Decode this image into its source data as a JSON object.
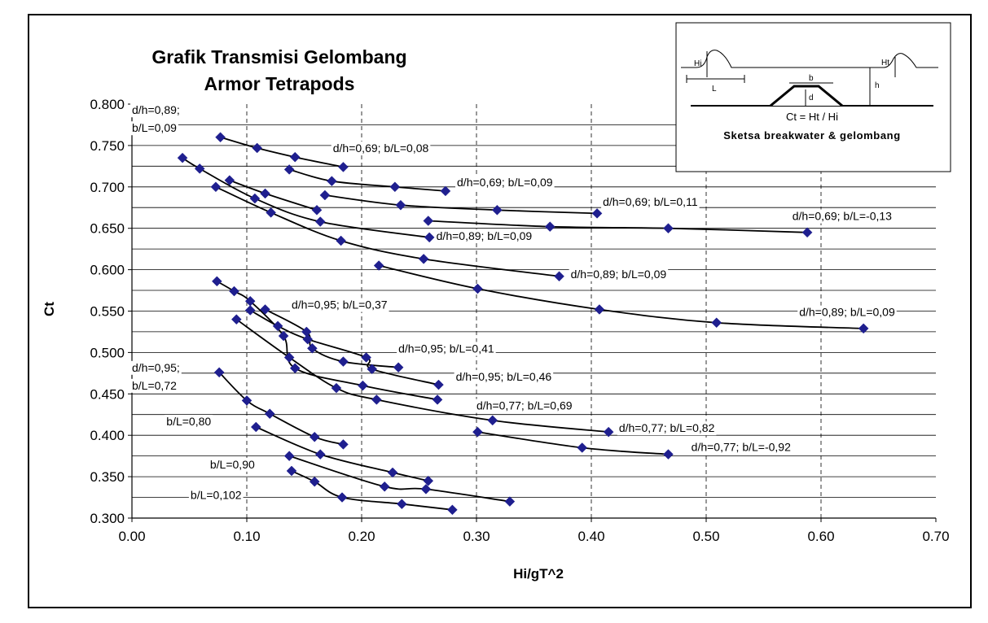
{
  "chart_data": {
    "type": "line",
    "title": "Grafik Transmisi Gelombang",
    "subtitle": "Armor Tetrapods",
    "xlabel": "Hi/gT^2",
    "ylabel": "Ct",
    "xlim": [
      0.0,
      0.7
    ],
    "ylim": [
      0.3,
      0.8
    ],
    "x_ticks": [
      "0.00",
      "0.10",
      "0.20",
      "0.30",
      "0.40",
      "0.50",
      "0.60",
      "0.70"
    ],
    "y_ticks": [
      "0.300",
      "0.350",
      "0.400",
      "0.450",
      "0.500",
      "0.550",
      "0.600",
      "0.650",
      "0.700",
      "0.750",
      "0.800"
    ],
    "grid": "dashed vertical gridlines",
    "marker_color": "#1f1f8f",
    "series": [
      {
        "values": [
          [
            0.077,
            0.76
          ],
          [
            0.109,
            0.747
          ],
          [
            0.142,
            0.736
          ],
          [
            0.184,
            0.724
          ]
        ]
      },
      {
        "values": [
          [
            0.137,
            0.721
          ],
          [
            0.174,
            0.707
          ],
          [
            0.229,
            0.7
          ],
          [
            0.273,
            0.695
          ]
        ]
      },
      {
        "values": [
          [
            0.168,
            0.69
          ],
          [
            0.234,
            0.678
          ],
          [
            0.318,
            0.672
          ],
          [
            0.405,
            0.668
          ]
        ]
      },
      {
        "values": [
          [
            0.258,
            0.659
          ],
          [
            0.364,
            0.652
          ],
          [
            0.467,
            0.65
          ],
          [
            0.588,
            0.645
          ]
        ]
      },
      {
        "values": [
          [
            0.085,
            0.708
          ],
          [
            0.116,
            0.692
          ],
          [
            0.161,
            0.672
          ]
        ]
      },
      {
        "values": [
          [
            0.044,
            0.735
          ],
          [
            0.059,
            0.722
          ],
          [
            0.107,
            0.686
          ],
          [
            0.164,
            0.658
          ],
          [
            0.259,
            0.639
          ]
        ]
      },
      {
        "values": [
          [
            0.073,
            0.7
          ],
          [
            0.121,
            0.669
          ],
          [
            0.182,
            0.635
          ],
          [
            0.254,
            0.613
          ],
          [
            0.372,
            0.592
          ]
        ]
      },
      {
        "values": [
          [
            0.215,
            0.605
          ],
          [
            0.301,
            0.577
          ],
          [
            0.407,
            0.552
          ],
          [
            0.509,
            0.536
          ],
          [
            0.637,
            0.529
          ]
        ]
      },
      {
        "values": [
          [
            0.074,
            0.586
          ],
          [
            0.089,
            0.574
          ],
          [
            0.103,
            0.562
          ],
          [
            0.132,
            0.52
          ],
          [
            0.142,
            0.481
          ],
          [
            0.201,
            0.46
          ],
          [
            0.266,
            0.443
          ]
        ]
      },
      {
        "values": [
          [
            0.116,
            0.552
          ],
          [
            0.152,
            0.525
          ],
          [
            0.157,
            0.505
          ],
          [
            0.184,
            0.489
          ],
          [
            0.232,
            0.482
          ]
        ]
      },
      {
        "values": [
          [
            0.103,
            0.551
          ],
          [
            0.127,
            0.532
          ],
          [
            0.153,
            0.516
          ],
          [
            0.204,
            0.494
          ],
          [
            0.209,
            0.48
          ],
          [
            0.267,
            0.461
          ]
        ]
      },
      {
        "values": [
          [
            0.091,
            0.54
          ],
          [
            0.137,
            0.494
          ],
          [
            0.178,
            0.457
          ],
          [
            0.213,
            0.443
          ],
          [
            0.314,
            0.418
          ],
          [
            0.415,
            0.404
          ]
        ]
      },
      {
        "values": [
          [
            0.076,
            0.476
          ],
          [
            0.1,
            0.442
          ],
          [
            0.12,
            0.426
          ],
          [
            0.159,
            0.398
          ],
          [
            0.184,
            0.389
          ]
        ]
      },
      {
        "values": [
          [
            0.108,
            0.41
          ],
          [
            0.164,
            0.377
          ],
          [
            0.227,
            0.355
          ],
          [
            0.258,
            0.345
          ]
        ]
      },
      {
        "values": [
          [
            0.137,
            0.375
          ],
          [
            0.22,
            0.338
          ],
          [
            0.256,
            0.335
          ],
          [
            0.329,
            0.32
          ]
        ]
      },
      {
        "values": [
          [
            0.139,
            0.357
          ],
          [
            0.159,
            0.344
          ],
          [
            0.183,
            0.325
          ],
          [
            0.235,
            0.317
          ],
          [
            0.279,
            0.31
          ]
        ]
      },
      {
        "values": [
          [
            0.301,
            0.404
          ],
          [
            0.392,
            0.385
          ],
          [
            0.467,
            0.377
          ]
        ]
      }
    ],
    "annotations": [
      {
        "lines": [
          "d/h=0,89;",
          "b/L=0,09"
        ],
        "x": 0.0,
        "y": 0.788
      },
      {
        "lines": [
          "d/h=0,69; b/L=0,08"
        ],
        "x": 0.175,
        "y": 0.742
      },
      {
        "lines": [
          "d/h=0,69; b/L=0,09"
        ],
        "x": 0.283,
        "y": 0.701
      },
      {
        "lines": [
          "d/h=0,69; b/L=0,11"
        ],
        "x": 0.41,
        "y": 0.677
      },
      {
        "lines": [
          "d/h=0,69; b/L=-0,13"
        ],
        "x": 0.575,
        "y": 0.66
      },
      {
        "lines": [
          "d/h=0,89; b/L=0,09"
        ],
        "x": 0.265,
        "y": 0.636
      },
      {
        "lines": [
          "d/h=0,89; b/L=0,09"
        ],
        "x": 0.382,
        "y": 0.59
      },
      {
        "lines": [
          "d/h=0,89; b/L=0,09"
        ],
        "x": 0.581,
        "y": 0.544
      },
      {
        "lines": [
          "d/h=0,95; b/L=0,37"
        ],
        "x": 0.139,
        "y": 0.553
      },
      {
        "lines": [
          "d/h=0,95; b/L=0,41"
        ],
        "x": 0.232,
        "y": 0.5
      },
      {
        "lines": [
          "d/h=0,95; b/L=0,46"
        ],
        "x": 0.282,
        "y": 0.466
      },
      {
        "lines": [
          "d/h=0,95;",
          "b/L=0,72"
        ],
        "x": 0.0,
        "y": 0.477
      },
      {
        "lines": [
          "d/h=0,77; b/L=0,69"
        ],
        "x": 0.3,
        "y": 0.431
      },
      {
        "lines": [
          "d/h=0,77; b/L=0,82"
        ],
        "x": 0.424,
        "y": 0.404
      },
      {
        "lines": [
          "d/h=0,77; b/L=-0,92"
        ],
        "x": 0.487,
        "y": 0.381
      },
      {
        "lines": [
          "b/L=0,80"
        ],
        "x": 0.03,
        "y": 0.412
      },
      {
        "lines": [
          "b/L=0,90"
        ],
        "x": 0.068,
        "y": 0.36
      },
      {
        "lines": [
          "b/L=0,102"
        ],
        "x": 0.051,
        "y": 0.323
      }
    ]
  },
  "inset": {
    "labels": {
      "hi": "Hi",
      "l": "L",
      "b": "b",
      "d": "d",
      "h": "h",
      "ht": "Ht"
    },
    "formula": "Ct = Ht / Hi",
    "caption": "Sketsa breakwater & gelombang"
  }
}
